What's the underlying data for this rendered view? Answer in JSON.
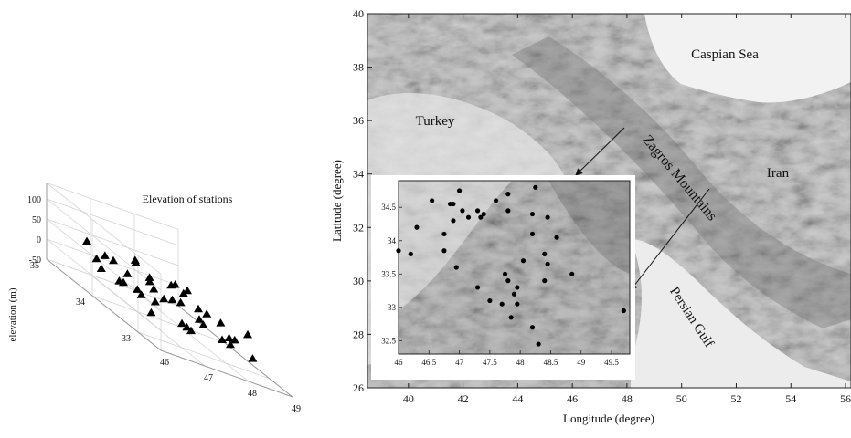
{
  "chart_data": [
    {
      "type": "scatter3d",
      "title": "Elevation of stations",
      "xlabel": "",
      "ylabel": "",
      "zlabel": "elevation (m)",
      "xlim": [
        46,
        49
      ],
      "ylim": [
        32.5,
        35
      ],
      "zlim": [
        -50,
        100
      ],
      "x_ticks": [
        "46",
        "47",
        "48",
        "49"
      ],
      "y_ticks": [
        "33",
        "34",
        "35"
      ],
      "z_ticks": [
        "-50",
        "0",
        "50",
        "100"
      ],
      "grid": true,
      "marker": "triangle",
      "points": [
        {
          "x": 46.1,
          "y": 33.9,
          "z": 30
        },
        {
          "x": 46.2,
          "y": 34.1,
          "z": 40
        },
        {
          "x": 46.3,
          "y": 33.7,
          "z": 25
        },
        {
          "x": 46.4,
          "y": 33.4,
          "z": 35
        },
        {
          "x": 46.5,
          "y": 33.8,
          "z": 20
        },
        {
          "x": 46.6,
          "y": 34.3,
          "z": 45
        },
        {
          "x": 46.6,
          "y": 33.2,
          "z": 30
        },
        {
          "x": 46.7,
          "y": 33.6,
          "z": 15
        },
        {
          "x": 46.8,
          "y": 34.0,
          "z": 35
        },
        {
          "x": 46.9,
          "y": 33.3,
          "z": 40
        },
        {
          "x": 47.0,
          "y": 34.5,
          "z": 30
        },
        {
          "x": 47.0,
          "y": 33.0,
          "z": 10
        },
        {
          "x": 47.1,
          "y": 33.8,
          "z": 45
        },
        {
          "x": 47.2,
          "y": 34.2,
          "z": 60
        },
        {
          "x": 47.3,
          "y": 33.5,
          "z": 35
        },
        {
          "x": 47.4,
          "y": 34.0,
          "z": 20
        },
        {
          "x": 47.5,
          "y": 33.1,
          "z": 30
        },
        {
          "x": 47.6,
          "y": 34.6,
          "z": 45
        },
        {
          "x": 47.7,
          "y": 33.7,
          "z": 25
        },
        {
          "x": 47.8,
          "y": 33.3,
          "z": 10
        },
        {
          "x": 47.9,
          "y": 34.1,
          "z": 40
        },
        {
          "x": 48.0,
          "y": 33.6,
          "z": 30
        },
        {
          "x": 48.1,
          "y": 32.9,
          "z": 20
        },
        {
          "x": 48.2,
          "y": 34.3,
          "z": 35
        },
        {
          "x": 48.3,
          "y": 33.4,
          "z": 25
        },
        {
          "x": 48.4,
          "y": 33.8,
          "z": 15
        },
        {
          "x": 48.5,
          "y": 33.0,
          "z": 40
        },
        {
          "x": 48.6,
          "y": 34.5,
          "z": 10
        },
        {
          "x": 48.7,
          "y": 33.6,
          "z": -15
        },
        {
          "x": 49.0,
          "y": 34.8,
          "z": 5
        },
        {
          "x": 46.3,
          "y": 33.0,
          "z": 10
        },
        {
          "x": 47.0,
          "y": 32.8,
          "z": 10
        },
        {
          "x": 46.8,
          "y": 32.7,
          "z": 20
        },
        {
          "x": 47.5,
          "y": 32.6,
          "z": 25
        },
        {
          "x": 48.0,
          "y": 32.9,
          "z": 5
        },
        {
          "x": 48.3,
          "y": 32.7,
          "z": 0
        },
        {
          "x": 47.2,
          "y": 33.9,
          "z": 50
        },
        {
          "x": 46.5,
          "y": 34.6,
          "z": 50
        }
      ]
    },
    {
      "type": "map",
      "xlabel": "Longitude (degree)",
      "ylabel": "Latitude (degree)",
      "xlim": [
        38.5,
        56.2
      ],
      "ylim": [
        26,
        40
      ],
      "x_ticks": [
        "40",
        "42",
        "44",
        "46",
        "48",
        "50",
        "52",
        "54",
        "56"
      ],
      "y_ticks": [
        "26",
        "28",
        "30",
        "32",
        "34",
        "36",
        "38",
        "40"
      ],
      "annotations": [
        "Caspian Sea",
        "Turkey",
        "Iran",
        "Zagros Mountains",
        "Persian Gulf"
      ],
      "inset": {
        "xlim": [
          46,
          49.8
        ],
        "ylim": [
          32.3,
          34.9
        ],
        "x_ticks": [
          "46",
          "46.5",
          "47",
          "47.5",
          "48",
          "48.5",
          "49",
          "49.5"
        ],
        "y_ticks": [
          "32.5",
          "33",
          "33.5",
          "34",
          "34.5"
        ],
        "marker": "dot",
        "stations": [
          {
            "lon": 47.0,
            "lat": 34.75
          },
          {
            "lon": 47.8,
            "lat": 34.7
          },
          {
            "lon": 48.25,
            "lat": 34.8
          },
          {
            "lon": 46.55,
            "lat": 34.6
          },
          {
            "lon": 46.85,
            "lat": 34.55
          },
          {
            "lon": 46.9,
            "lat": 34.55
          },
          {
            "lon": 47.05,
            "lat": 34.45
          },
          {
            "lon": 47.3,
            "lat": 34.45
          },
          {
            "lon": 47.8,
            "lat": 34.45
          },
          {
            "lon": 47.6,
            "lat": 34.6
          },
          {
            "lon": 48.45,
            "lat": 34.35
          },
          {
            "lon": 46.9,
            "lat": 34.3
          },
          {
            "lon": 47.15,
            "lat": 34.35
          },
          {
            "lon": 47.4,
            "lat": 34.4
          },
          {
            "lon": 48.2,
            "lat": 34.4
          },
          {
            "lon": 46.3,
            "lat": 34.2
          },
          {
            "lon": 47.35,
            "lat": 34.35
          },
          {
            "lon": 48.6,
            "lat": 34.05
          },
          {
            "lon": 46.75,
            "lat": 34.1
          },
          {
            "lon": 48.2,
            "lat": 34.1
          },
          {
            "lon": 46.0,
            "lat": 33.85
          },
          {
            "lon": 46.2,
            "lat": 33.8
          },
          {
            "lon": 46.75,
            "lat": 33.85
          },
          {
            "lon": 48.4,
            "lat": 33.8
          },
          {
            "lon": 46.95,
            "lat": 33.6
          },
          {
            "lon": 48.05,
            "lat": 33.7
          },
          {
            "lon": 48.45,
            "lat": 33.65
          },
          {
            "lon": 47.75,
            "lat": 33.5
          },
          {
            "lon": 48.85,
            "lat": 33.5
          },
          {
            "lon": 47.3,
            "lat": 33.3
          },
          {
            "lon": 47.8,
            "lat": 33.4
          },
          {
            "lon": 48.4,
            "lat": 33.4
          },
          {
            "lon": 47.9,
            "lat": 33.2
          },
          {
            "lon": 47.95,
            "lat": 33.3
          },
          {
            "lon": 47.5,
            "lat": 33.1
          },
          {
            "lon": 47.7,
            "lat": 33.05
          },
          {
            "lon": 47.95,
            "lat": 33.05
          },
          {
            "lon": 47.85,
            "lat": 32.85
          },
          {
            "lon": 48.2,
            "lat": 32.7
          },
          {
            "lon": 49.7,
            "lat": 32.95
          },
          {
            "lon": 48.3,
            "lat": 32.45
          }
        ]
      }
    }
  ]
}
